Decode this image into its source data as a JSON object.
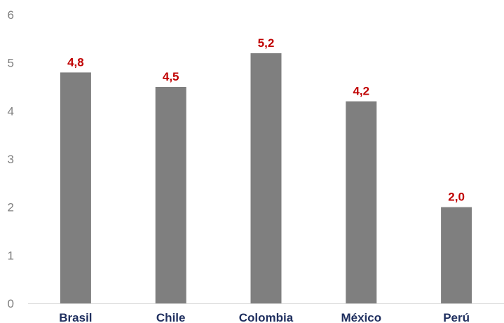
{
  "chart_data": {
    "type": "bar",
    "categories": [
      "Brasil",
      "Chile",
      "Colombia",
      "México",
      "Perú"
    ],
    "values": [
      4.8,
      4.5,
      5.2,
      4.2,
      2.0
    ],
    "data_labels": [
      "4,8",
      "4,5",
      "5,2",
      "4,2",
      "2,0"
    ],
    "title": "",
    "xlabel": "",
    "ylabel": "",
    "ylim": [
      0,
      6
    ],
    "yticks": [
      0,
      1,
      2,
      3,
      4,
      5,
      6
    ],
    "ytick_labels": [
      "0",
      "1",
      "2",
      "3",
      "4",
      "5",
      "6"
    ],
    "grid": false,
    "legend": "none",
    "colors": {
      "bar": "#7f7f7f",
      "data_label": "#c00000",
      "category_label": "#1f2f5f",
      "tick_label": "#7f7f7f",
      "axis": "#d9d9d9"
    }
  }
}
